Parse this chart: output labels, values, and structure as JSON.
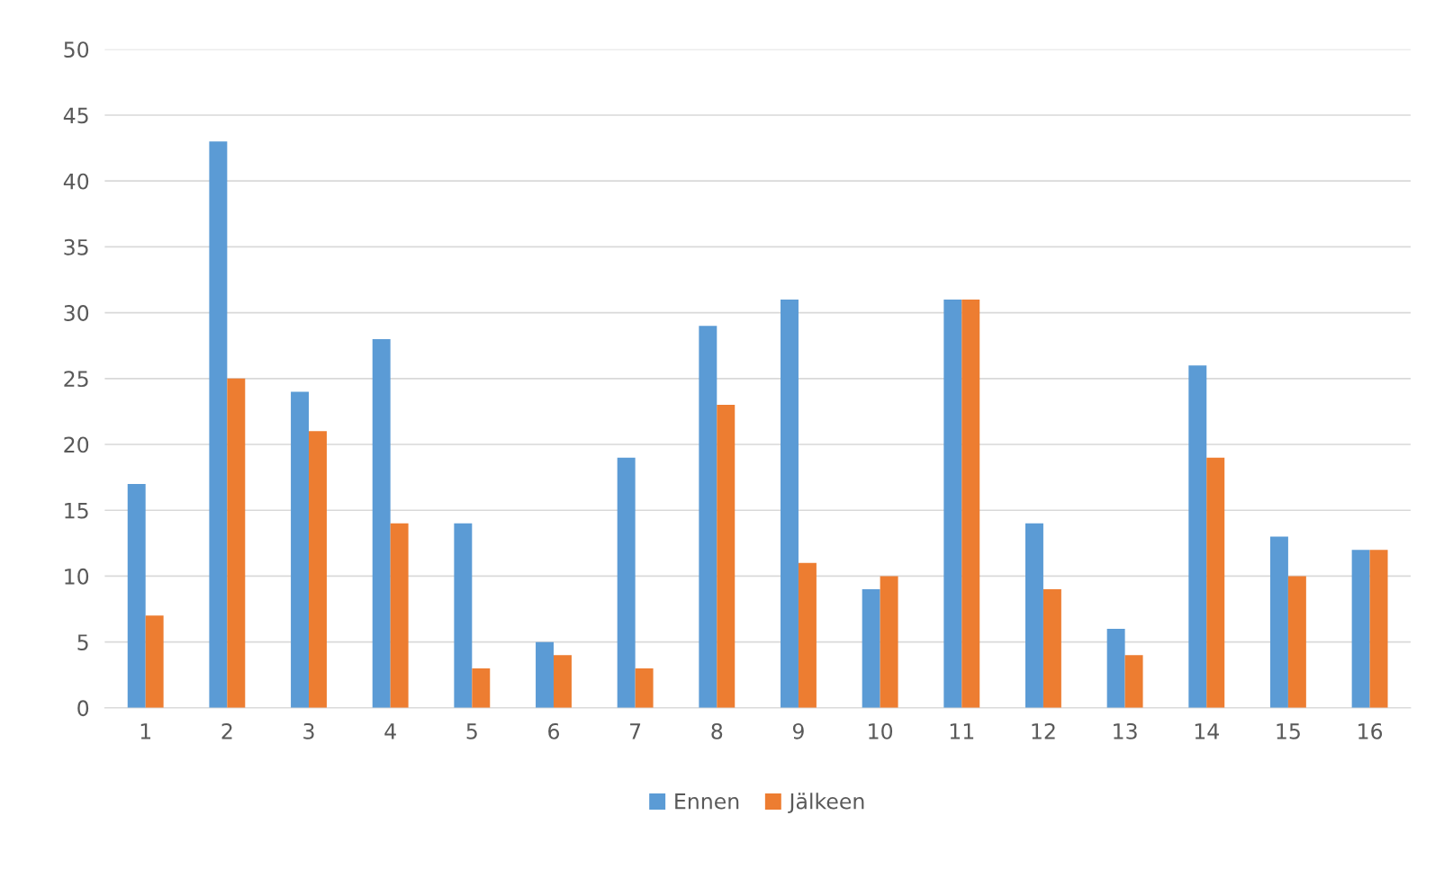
{
  "chart_data": {
    "type": "bar",
    "categories": [
      "1",
      "2",
      "3",
      "4",
      "5",
      "6",
      "7",
      "8",
      "9",
      "10",
      "11",
      "12",
      "13",
      "14",
      "15",
      "16"
    ],
    "series": [
      {
        "name": "Ennen",
        "color": "#5b9bd5",
        "values": [
          17,
          43,
          24,
          28,
          14,
          5,
          19,
          29,
          31,
          9,
          31,
          14,
          6,
          26,
          13,
          12
        ]
      },
      {
        "name": "Jälkeen",
        "color": "#ed7d31",
        "values": [
          7,
          25,
          21,
          14,
          3,
          4,
          3,
          23,
          11,
          10,
          31,
          9,
          4,
          19,
          10,
          12
        ]
      }
    ],
    "ylim": [
      0,
      50
    ],
    "yticks": [
      0,
      5,
      10,
      15,
      20,
      25,
      30,
      35,
      40,
      45,
      50
    ],
    "grid": "y",
    "legend": "bottom"
  }
}
